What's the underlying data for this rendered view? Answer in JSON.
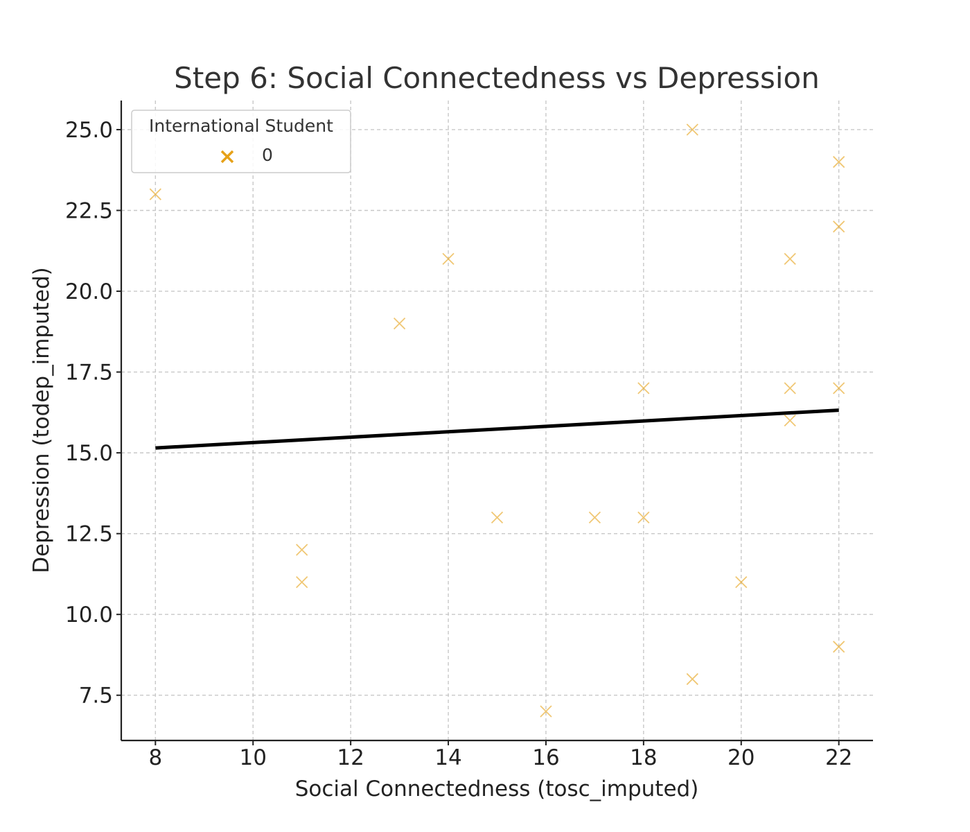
{
  "chart_data": {
    "type": "scatter",
    "title": "Step 6: Social Connectedness vs Depression",
    "xlabel": "Social Connectedness (tosc_imputed)",
    "ylabel": "Depression (todep_imputed)",
    "xlim": [
      7.3,
      22.7
    ],
    "ylim": [
      6.1,
      25.9
    ],
    "xticks": [
      "8",
      "10",
      "12",
      "14",
      "16",
      "18",
      "20",
      "22"
    ],
    "yticks": [
      "7.5",
      "10.0",
      "12.5",
      "15.0",
      "17.5",
      "20.0",
      "22.5",
      "25.0"
    ],
    "grid": true,
    "legend": {
      "title": "International Student",
      "placement": "top-left",
      "entries": [
        "0"
      ]
    },
    "series": [
      {
        "name": "0",
        "color": "#e6a118",
        "marker": "x",
        "points": [
          {
            "x": 8,
            "y": 23
          },
          {
            "x": 11,
            "y": 12
          },
          {
            "x": 11,
            "y": 11
          },
          {
            "x": 13,
            "y": 19
          },
          {
            "x": 14,
            "y": 21
          },
          {
            "x": 15,
            "y": 13
          },
          {
            "x": 16,
            "y": 7
          },
          {
            "x": 17,
            "y": 13
          },
          {
            "x": 18,
            "y": 17
          },
          {
            "x": 18,
            "y": 13
          },
          {
            "x": 19,
            "y": 25
          },
          {
            "x": 19,
            "y": 8
          },
          {
            "x": 20,
            "y": 11
          },
          {
            "x": 21,
            "y": 21
          },
          {
            "x": 21,
            "y": 17
          },
          {
            "x": 21,
            "y": 16
          },
          {
            "x": 22,
            "y": 24
          },
          {
            "x": 22,
            "y": 22
          },
          {
            "x": 22,
            "y": 17
          },
          {
            "x": 22,
            "y": 9
          }
        ]
      }
    ],
    "trend_line": {
      "x": [
        8,
        22
      ],
      "y": [
        15.15,
        16.32
      ],
      "color": "#000000"
    }
  }
}
